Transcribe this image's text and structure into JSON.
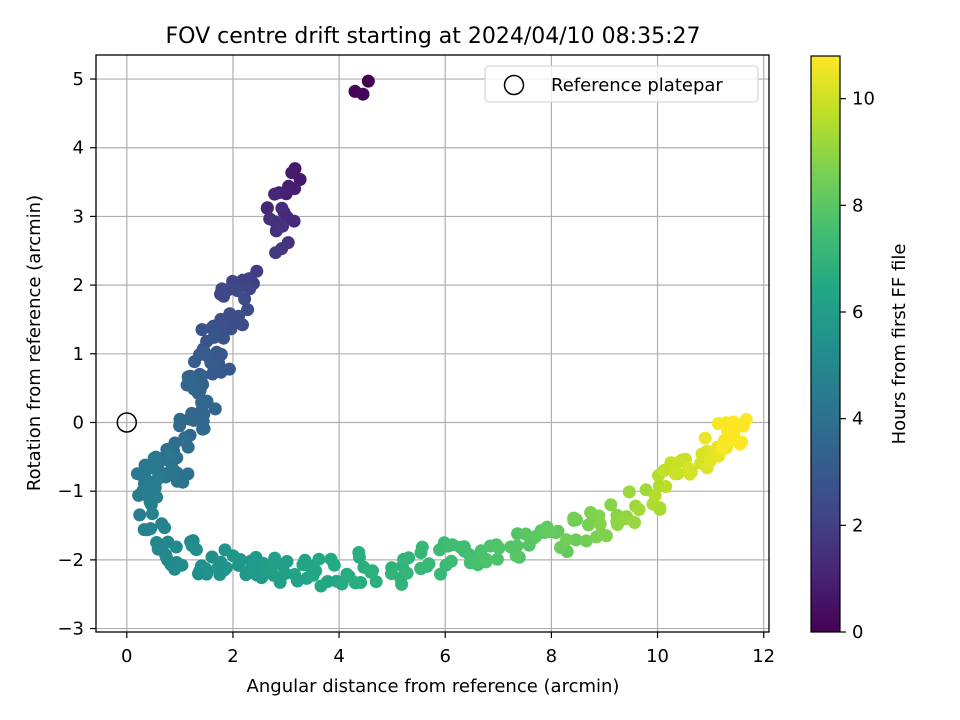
{
  "chart_data": {
    "type": "scatter",
    "title": "FOV centre drift starting at 2024/04/10 08:35:27",
    "xlabel": "Angular distance from reference (arcmin)",
    "ylabel": "Rotation from reference (arcmin)",
    "xlim": [
      -0.58,
      12.1
    ],
    "ylim": [
      -3.05,
      5.35
    ],
    "xticks": [
      0,
      2,
      4,
      6,
      8,
      10,
      12
    ],
    "yticks": [
      -3,
      -2,
      -1,
      0,
      1,
      2,
      3,
      4,
      5
    ],
    "grid": true,
    "legend": {
      "placement": "top-right",
      "entries": [
        "Reference platepar"
      ]
    },
    "reference_point": {
      "x": 0,
      "y": 0,
      "label": "Reference platepar"
    },
    "colorbar": {
      "label": "Hours from first FF file",
      "colormap": "viridis",
      "min": 0,
      "max": 10.8,
      "ticks": [
        0,
        2,
        4,
        6,
        8,
        10
      ]
    },
    "keypoints": [
      {
        "x": 4.55,
        "y": 4.97,
        "c": 0.0
      },
      {
        "x": 4.3,
        "y": 4.82,
        "c": 0.1
      },
      {
        "x": 4.45,
        "y": 4.78,
        "c": 0.2
      },
      {
        "x": 3.3,
        "y": 3.58,
        "c": 0.7
      },
      {
        "x": 3.05,
        "y": 3.52,
        "c": 0.9
      },
      {
        "x": 2.65,
        "y": 3.18,
        "c": 1.1
      },
      {
        "x": 3.1,
        "y": 3.0,
        "c": 1.3
      },
      {
        "x": 2.8,
        "y": 2.88,
        "c": 1.5
      },
      {
        "x": 3.05,
        "y": 2.7,
        "c": 1.6
      },
      {
        "x": 2.4,
        "y": 2.15,
        "c": 2.0
      },
      {
        "x": 2.1,
        "y": 1.95,
        "c": 2.2
      },
      {
        "x": 1.75,
        "y": 1.95,
        "c": 2.3
      },
      {
        "x": 2.2,
        "y": 1.6,
        "c": 2.5
      },
      {
        "x": 1.9,
        "y": 1.35,
        "c": 2.6
      },
      {
        "x": 1.5,
        "y": 1.25,
        "c": 2.8
      },
      {
        "x": 1.85,
        "y": 0.95,
        "c": 3.0
      },
      {
        "x": 1.5,
        "y": 0.85,
        "c": 3.1
      },
      {
        "x": 1.4,
        "y": 0.5,
        "c": 3.3
      },
      {
        "x": 1.1,
        "y": 0.45,
        "c": 3.5
      },
      {
        "x": 1.5,
        "y": 0.1,
        "c": 3.6
      },
      {
        "x": 1.2,
        "y": 0.0,
        "c": 3.7
      },
      {
        "x": 0.9,
        "y": -0.35,
        "c": 3.9
      },
      {
        "x": 1.0,
        "y": -0.65,
        "c": 4.1
      },
      {
        "x": 0.6,
        "y": -0.7,
        "c": 4.3
      },
      {
        "x": 0.35,
        "y": -0.75,
        "c": 4.4
      },
      {
        "x": 0.4,
        "y": -1.1,
        "c": 4.5
      },
      {
        "x": 0.5,
        "y": -1.45,
        "c": 4.7
      },
      {
        "x": 0.7,
        "y": -1.8,
        "c": 4.9
      },
      {
        "x": 1.0,
        "y": -1.9,
        "c": 5.1
      },
      {
        "x": 1.4,
        "y": -2.05,
        "c": 5.3
      },
      {
        "x": 1.9,
        "y": -2.05,
        "c": 5.5
      },
      {
        "x": 2.2,
        "y": -2.1,
        "c": 5.7
      },
      {
        "x": 2.7,
        "y": -2.15,
        "c": 5.9
      },
      {
        "x": 3.0,
        "y": -2.1,
        "c": 6.1
      },
      {
        "x": 3.4,
        "y": -2.2,
        "c": 6.3
      },
      {
        "x": 3.9,
        "y": -2.2,
        "c": 6.5
      },
      {
        "x": 4.4,
        "y": -2.1,
        "c": 6.7
      },
      {
        "x": 4.9,
        "y": -2.2,
        "c": 6.9
      },
      {
        "x": 5.4,
        "y": -2.05,
        "c": 7.1
      },
      {
        "x": 5.9,
        "y": -1.95,
        "c": 7.3
      },
      {
        "x": 6.4,
        "y": -1.9,
        "c": 7.5
      },
      {
        "x": 6.9,
        "y": -1.85,
        "c": 7.7
      },
      {
        "x": 7.4,
        "y": -1.8,
        "c": 7.9
      },
      {
        "x": 7.9,
        "y": -1.7,
        "c": 8.1
      },
      {
        "x": 8.4,
        "y": -1.6,
        "c": 8.4
      },
      {
        "x": 8.9,
        "y": -1.45,
        "c": 8.7
      },
      {
        "x": 9.4,
        "y": -1.3,
        "c": 9.0
      },
      {
        "x": 9.9,
        "y": -1.05,
        "c": 9.4
      },
      {
        "x": 10.3,
        "y": -0.8,
        "c": 9.8
      },
      {
        "x": 10.7,
        "y": -0.6,
        "c": 10.1
      },
      {
        "x": 11.0,
        "y": -0.4,
        "c": 10.4
      },
      {
        "x": 11.3,
        "y": -0.2,
        "c": 10.7
      },
      {
        "x": 11.5,
        "y": -0.05,
        "c": 10.8
      }
    ]
  }
}
